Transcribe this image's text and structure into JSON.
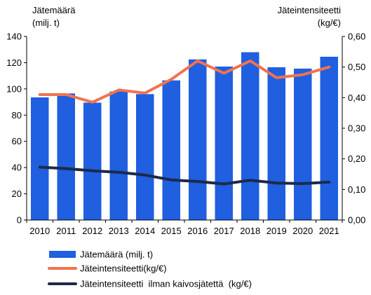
{
  "chart_data": {
    "type": "bar",
    "categories": [
      "2010",
      "2011",
      "2012",
      "2013",
      "2014",
      "2015",
      "2016",
      "2017",
      "2018",
      "2019",
      "2020",
      "2021"
    ],
    "y_left": {
      "title_line1": "Jätemäärä",
      "title_line2": "(milj. t)",
      "ylim": [
        0,
        140
      ],
      "ticks": [
        0,
        20,
        40,
        60,
        80,
        100,
        120,
        140
      ],
      "tick_labels": [
        "0",
        "20",
        "40",
        "60",
        "80",
        "100",
        "120",
        "140"
      ]
    },
    "y_right": {
      "title_line1": "Jäteintensiteetti",
      "title_line2": "(kg/€)",
      "ylim": [
        0,
        0.6
      ],
      "ticks": [
        0,
        0.1,
        0.2,
        0.3,
        0.4,
        0.5,
        0.6
      ],
      "tick_labels": [
        "0,00",
        "0,10",
        "0,20",
        "0,30",
        "0,40",
        "0,50",
        "0,60"
      ]
    },
    "series": [
      {
        "name": "Jätemäärä (milj. t)",
        "kind": "bar",
        "axis": "left",
        "color": "#1f5fe0",
        "values": [
          93.5,
          96.5,
          89.5,
          98,
          96,
          106.5,
          122.5,
          117,
          128,
          116.5,
          115.5,
          124.5
        ]
      },
      {
        "name": "Jäteintensiteetti(kg/€)",
        "kind": "line",
        "axis": "right",
        "color": "#f07350",
        "values": [
          0.41,
          0.41,
          0.385,
          0.425,
          0.415,
          0.46,
          0.52,
          0.48,
          0.52,
          0.465,
          0.475,
          0.5
        ]
      },
      {
        "name": "Jäteintensiteetti  ilman kaivosjätettä  (kg/€)",
        "kind": "line",
        "axis": "right",
        "color": "#1c2a4a",
        "values": [
          0.173,
          0.168,
          0.161,
          0.156,
          0.147,
          0.131,
          0.126,
          0.118,
          0.13,
          0.121,
          0.119,
          0.124
        ]
      }
    ],
    "grid": false,
    "legend_position": "bottom"
  }
}
